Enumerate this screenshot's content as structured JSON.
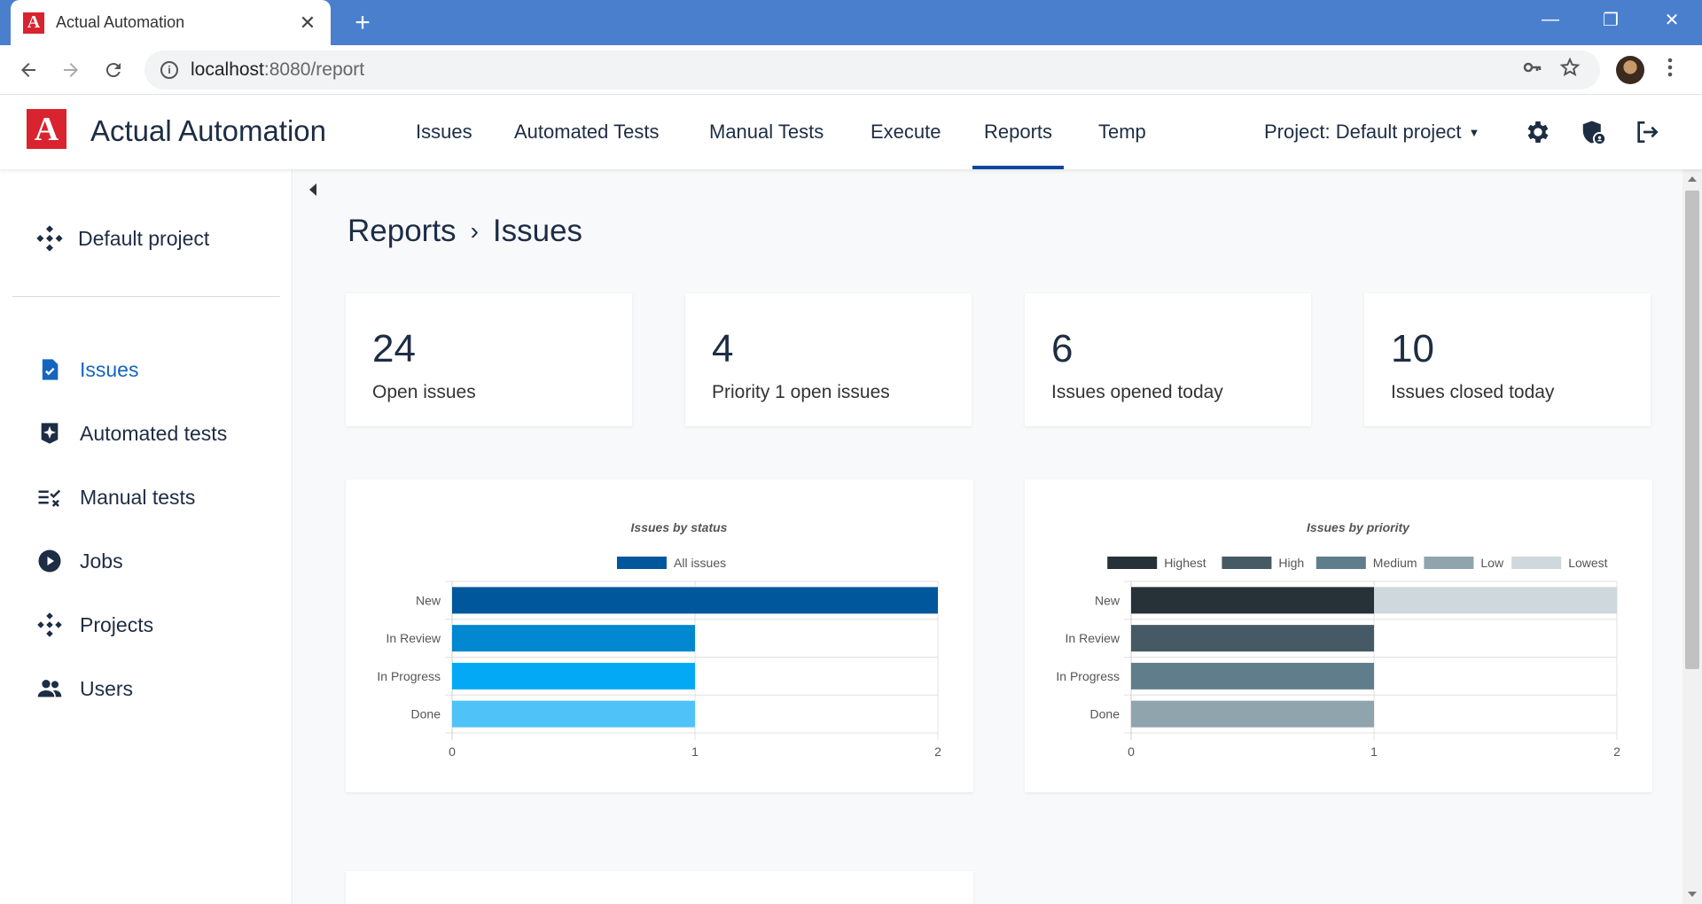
{
  "browser": {
    "tab_title": "Actual Automation",
    "tab_close": "✕",
    "new_tab": "+",
    "url_host": "localhost",
    "url_path": ":8080/report",
    "info_icon": "i",
    "window_controls": {
      "minimize": "—",
      "restore": "❐",
      "close": "✕"
    }
  },
  "app": {
    "logo_letter": "A",
    "brand": "Actual Automation",
    "nav": [
      "Issues",
      "Automated Tests",
      "Manual Tests",
      "Execute",
      "Reports",
      "Temp"
    ],
    "active_nav": "Reports",
    "project_select": "Project: Default project"
  },
  "sidebar": {
    "project": "Default project",
    "items": [
      {
        "label": "Issues",
        "active": true
      },
      {
        "label": "Automated tests",
        "active": false
      },
      {
        "label": "Manual tests",
        "active": false
      },
      {
        "label": "Jobs",
        "active": false
      },
      {
        "label": "Projects",
        "active": false
      },
      {
        "label": "Users",
        "active": false
      }
    ]
  },
  "breadcrumb": {
    "parent": "Reports",
    "separator": "›",
    "current": "Issues"
  },
  "stats": [
    {
      "value": "24",
      "label": "Open issues"
    },
    {
      "value": "4",
      "label": "Priority 1 open issues"
    },
    {
      "value": "6",
      "label": "Issues opened today"
    },
    {
      "value": "10",
      "label": "Issues closed today"
    }
  ],
  "colors": {
    "accent": "#1565c0",
    "logo_red": "#d9232e",
    "status_series": [
      "#01579b",
      "#0288d1",
      "#03a9f4",
      "#4fc3f7"
    ],
    "priority_series": [
      "#263238",
      "#455a64",
      "#607d8b",
      "#90a4ae",
      "#cfd8dc"
    ]
  },
  "chart_data": [
    {
      "type": "bar",
      "orientation": "horizontal",
      "title": "Issues by status",
      "categories": [
        "New",
        "In Review",
        "In Progress",
        "Done"
      ],
      "series": [
        {
          "name": "All issues",
          "values": [
            2,
            1,
            1,
            1
          ]
        }
      ],
      "xlim": [
        0,
        2
      ],
      "xticks": [
        "0",
        "1",
        "2"
      ],
      "legend_position": "top"
    },
    {
      "type": "bar",
      "orientation": "horizontal",
      "stacked": true,
      "title": "Issues by priority",
      "categories": [
        "New",
        "In Review",
        "In Progress",
        "Done"
      ],
      "series": [
        {
          "name": "Highest",
          "values": [
            1,
            0,
            0,
            0
          ]
        },
        {
          "name": "High",
          "values": [
            0,
            1,
            0,
            0
          ]
        },
        {
          "name": "Medium",
          "values": [
            0,
            0,
            1,
            0
          ]
        },
        {
          "name": "Low",
          "values": [
            0,
            0,
            0,
            1
          ]
        },
        {
          "name": "Lowest",
          "values": [
            1,
            0,
            0,
            0
          ]
        }
      ],
      "xlim": [
        0,
        2
      ],
      "xticks": [
        "0",
        "1",
        "2"
      ],
      "legend_position": "top"
    }
  ]
}
